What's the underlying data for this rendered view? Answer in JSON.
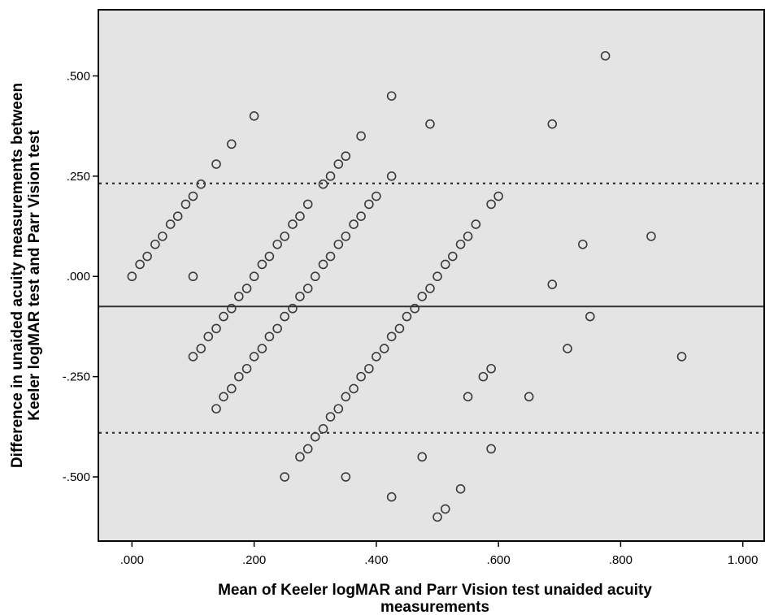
{
  "chart_data": {
    "type": "scatter",
    "title": "",
    "xlabel_lines": [
      "Mean of Keeler logMAR and Parr Vision test unaided acuity",
      "measurements"
    ],
    "ylabel_lines": [
      "Difference in unaided acuity measurements between",
      "Keeler logMAR test and Parr Vision test"
    ],
    "xlim": [
      -0.055,
      1.035
    ],
    "ylim": [
      -0.66,
      0.665
    ],
    "x_ticks": [
      0,
      0.2,
      0.4,
      0.6,
      0.8,
      1.0
    ],
    "x_tick_labels": [
      ".000",
      ".200",
      ".400",
      ".600",
      ".800",
      "1.000"
    ],
    "y_ticks": [
      0.5,
      0.25,
      0,
      -0.25,
      -0.5
    ],
    "y_tick_labels": [
      ".500",
      ".250",
      ".000",
      "-.250",
      "-.500"
    ],
    "reference_lines": [
      {
        "y": -0.075,
        "style": "solid"
      },
      {
        "y": 0.232,
        "style": "dotted"
      },
      {
        "y": -0.39,
        "style": "dotted"
      }
    ],
    "grid": false,
    "colors": {
      "plot_background": "#e4e4e4",
      "marker": "#3a3a3a",
      "line": "#333333"
    },
    "points": [
      [
        0.0,
        0.0
      ],
      [
        0.013,
        0.03
      ],
      [
        0.025,
        0.05
      ],
      [
        0.038,
        0.08
      ],
      [
        0.05,
        0.1
      ],
      [
        0.063,
        0.13
      ],
      [
        0.075,
        0.15
      ],
      [
        0.088,
        0.18
      ],
      [
        0.1,
        0.2
      ],
      [
        0.113,
        0.23
      ],
      [
        0.138,
        0.28
      ],
      [
        0.163,
        0.33
      ],
      [
        0.2,
        0.4
      ],
      [
        0.1,
        0.0
      ],
      [
        0.1,
        -0.2
      ],
      [
        0.113,
        -0.18
      ],
      [
        0.125,
        -0.15
      ],
      [
        0.138,
        -0.13
      ],
      [
        0.15,
        -0.1
      ],
      [
        0.163,
        -0.08
      ],
      [
        0.175,
        -0.05
      ],
      [
        0.188,
        -0.03
      ],
      [
        0.2,
        0.0
      ],
      [
        0.213,
        0.03
      ],
      [
        0.225,
        0.05
      ],
      [
        0.238,
        0.08
      ],
      [
        0.25,
        0.1
      ],
      [
        0.263,
        0.13
      ],
      [
        0.275,
        0.15
      ],
      [
        0.288,
        0.18
      ],
      [
        0.313,
        0.23
      ],
      [
        0.325,
        0.25
      ],
      [
        0.338,
        0.28
      ],
      [
        0.35,
        0.3
      ],
      [
        0.375,
        0.35
      ],
      [
        0.138,
        -0.33
      ],
      [
        0.15,
        -0.3
      ],
      [
        0.163,
        -0.28
      ],
      [
        0.175,
        -0.25
      ],
      [
        0.188,
        -0.23
      ],
      [
        0.2,
        -0.2
      ],
      [
        0.213,
        -0.18
      ],
      [
        0.225,
        -0.15
      ],
      [
        0.238,
        -0.13
      ],
      [
        0.25,
        -0.1
      ],
      [
        0.263,
        -0.08
      ],
      [
        0.275,
        -0.05
      ],
      [
        0.288,
        -0.03
      ],
      [
        0.3,
        0.0
      ],
      [
        0.313,
        0.03
      ],
      [
        0.325,
        0.05
      ],
      [
        0.338,
        0.08
      ],
      [
        0.35,
        0.1
      ],
      [
        0.363,
        0.13
      ],
      [
        0.375,
        0.15
      ],
      [
        0.388,
        0.18
      ],
      [
        0.4,
        0.2
      ],
      [
        0.25,
        -0.5
      ],
      [
        0.275,
        -0.45
      ],
      [
        0.288,
        -0.43
      ],
      [
        0.3,
        -0.4
      ],
      [
        0.313,
        -0.38
      ],
      [
        0.325,
        -0.35
      ],
      [
        0.338,
        -0.33
      ],
      [
        0.35,
        -0.3
      ],
      [
        0.363,
        -0.28
      ],
      [
        0.375,
        -0.25
      ],
      [
        0.388,
        -0.23
      ],
      [
        0.4,
        -0.2
      ],
      [
        0.413,
        -0.18
      ],
      [
        0.425,
        -0.15
      ],
      [
        0.438,
        -0.13
      ],
      [
        0.45,
        -0.1
      ],
      [
        0.463,
        -0.08
      ],
      [
        0.475,
        -0.05
      ],
      [
        0.488,
        -0.03
      ],
      [
        0.5,
        0.0
      ],
      [
        0.513,
        0.03
      ],
      [
        0.525,
        0.05
      ],
      [
        0.538,
        0.08
      ],
      [
        0.55,
        0.1
      ],
      [
        0.563,
        0.13
      ],
      [
        0.588,
        0.18
      ],
      [
        0.6,
        0.2
      ],
      [
        0.35,
        -0.5
      ],
      [
        0.425,
        -0.55
      ],
      [
        0.425,
        0.25
      ],
      [
        0.425,
        0.45
      ],
      [
        0.488,
        0.38
      ],
      [
        0.475,
        -0.45
      ],
      [
        0.5,
        -0.6
      ],
      [
        0.513,
        -0.58
      ],
      [
        0.538,
        -0.53
      ],
      [
        0.55,
        -0.3
      ],
      [
        0.575,
        -0.25
      ],
      [
        0.588,
        -0.23
      ],
      [
        0.588,
        -0.43
      ],
      [
        0.65,
        -0.3
      ],
      [
        0.688,
        0.38
      ],
      [
        0.688,
        -0.02
      ],
      [
        0.713,
        -0.18
      ],
      [
        0.738,
        0.08
      ],
      [
        0.75,
        -0.1
      ],
      [
        0.775,
        0.55
      ],
      [
        0.85,
        0.1
      ],
      [
        0.9,
        -0.2
      ]
    ]
  }
}
